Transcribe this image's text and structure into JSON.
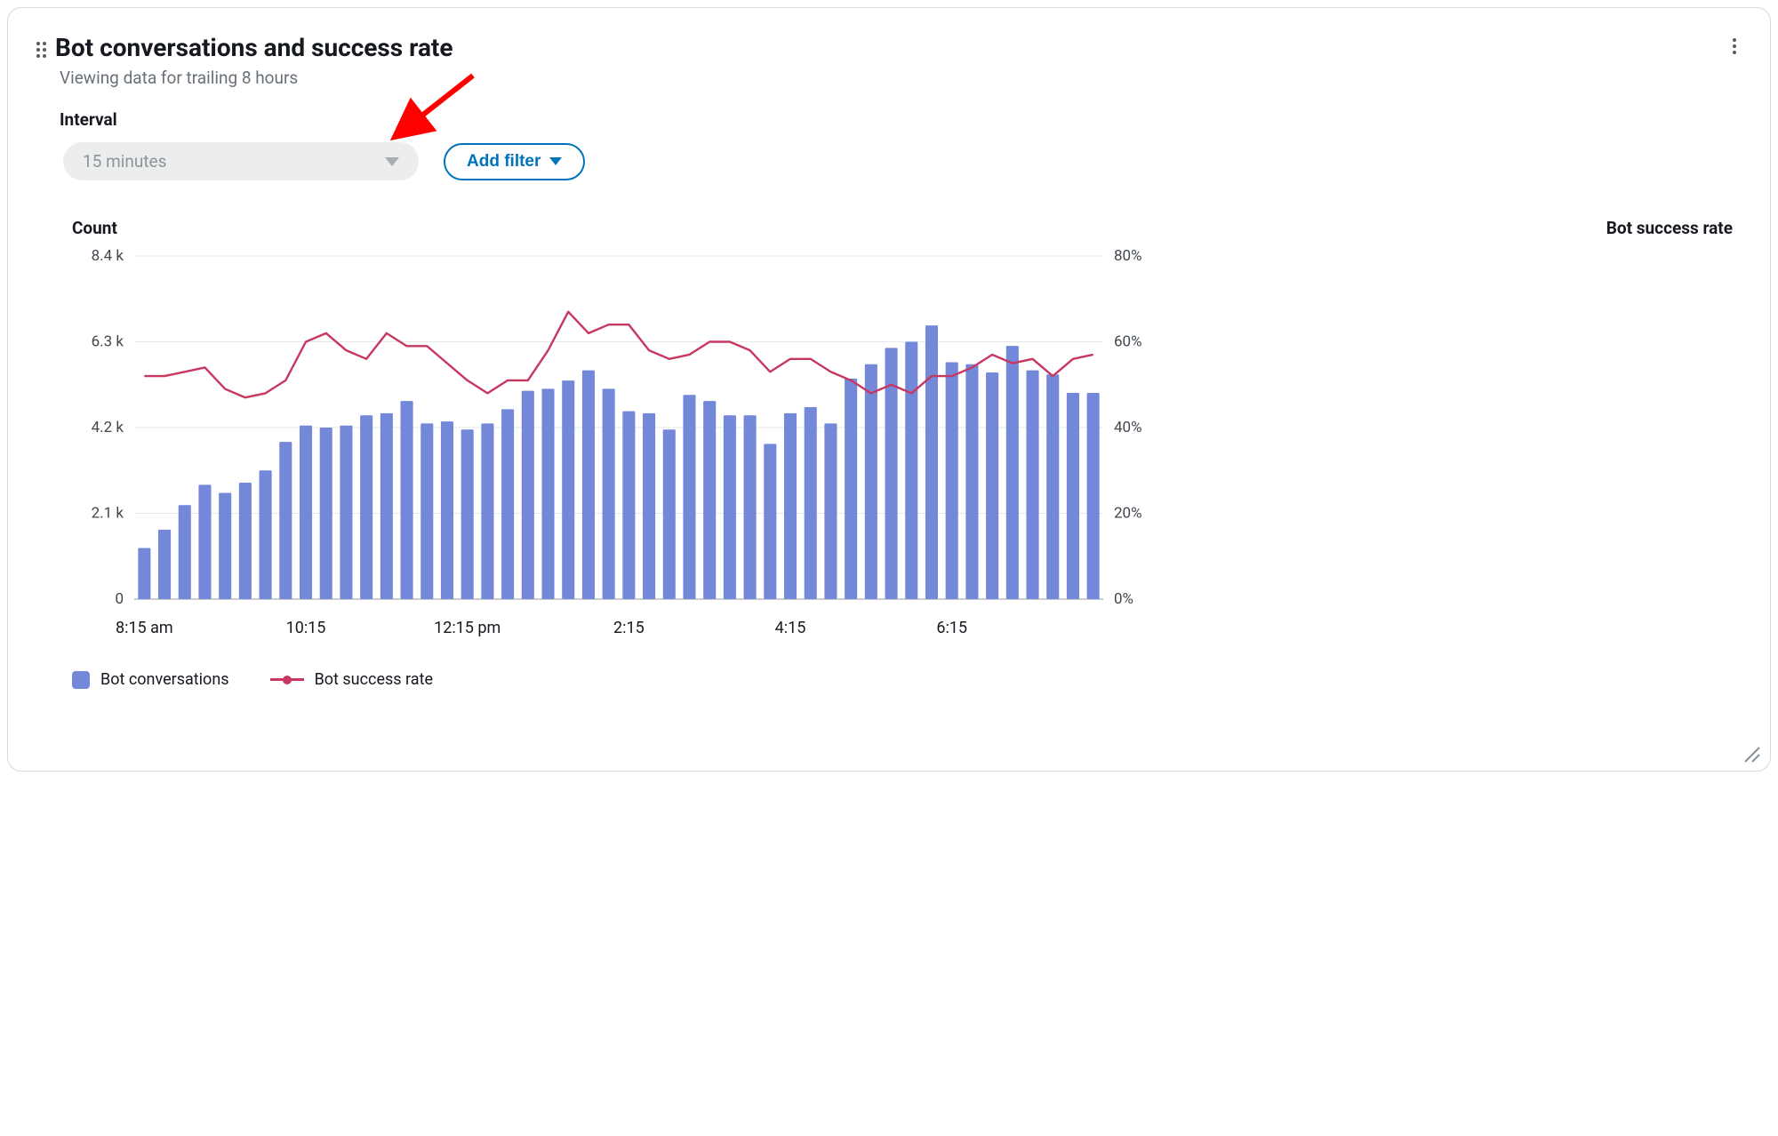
{
  "card": {
    "title": "Bot conversations and success rate",
    "subtitle": "Viewing data for trailing 8 hours",
    "interval_label": "Interval",
    "interval_value": "15 minutes",
    "add_filter_label": "Add filter"
  },
  "chart": {
    "type": "bar_line_combo",
    "left_axis_title": "Count",
    "right_axis_title": "Bot success rate",
    "left_axis": {
      "min": 0,
      "max": 8.4,
      "ticks": [
        0,
        2.1,
        4.2,
        6.3,
        8.4
      ],
      "tick_labels": [
        "0",
        "2.1 k",
        "4.2 k",
        "6.3 k",
        "8.4 k"
      ],
      "unit": "k"
    },
    "right_axis": {
      "min": 0,
      "max": 80,
      "ticks": [
        0,
        20,
        40,
        60,
        80
      ],
      "tick_labels": [
        "0%",
        "20%",
        "40%",
        "60%",
        "80%"
      ]
    },
    "x_ticks": {
      "positions": [
        0,
        8,
        16,
        24,
        32,
        40
      ],
      "labels": [
        "8:15 am",
        "10:15",
        "12:15 pm",
        "2:15",
        "4:15",
        "6:15"
      ]
    },
    "bar_color": "#7388d9",
    "line_color": "#c7375f",
    "grid_color": "#e6e8ea",
    "axis_color": "#b8bec4",
    "background_color": "#ffffff",
    "bar_width_ratio": 0.62,
    "line_width": 2.4,
    "marker_radius": 0,
    "bars": [
      1.25,
      1.7,
      2.3,
      2.8,
      2.6,
      2.85,
      3.15,
      3.85,
      4.25,
      4.2,
      4.25,
      4.5,
      4.55,
      4.85,
      4.3,
      4.35,
      4.15,
      4.3,
      4.65,
      5.1,
      5.15,
      5.35,
      5.6,
      5.15,
      4.6,
      4.55,
      4.15,
      5.0,
      4.85,
      4.5,
      4.5,
      3.8,
      4.55,
      4.7,
      4.3,
      5.4,
      5.75,
      6.15,
      6.3,
      6.7,
      5.8,
      5.75,
      5.55,
      6.2,
      5.6,
      5.5,
      5.05,
      5.05
    ],
    "line_pct": [
      52,
      52,
      53,
      54,
      49,
      47,
      48,
      51,
      60,
      62,
      58,
      56,
      62,
      59,
      59,
      55,
      51,
      48,
      51,
      51,
      58,
      67,
      62,
      64,
      64,
      58,
      56,
      57,
      60,
      60,
      58,
      53,
      56,
      56,
      53,
      51,
      48,
      50,
      48,
      52,
      52,
      54,
      57,
      55,
      56,
      52,
      56,
      57
    ],
    "legend": {
      "bar_label": "Bot conversations",
      "line_label": "Bot success rate"
    }
  },
  "annotation": {
    "arrow_color": "#ff0000"
  }
}
